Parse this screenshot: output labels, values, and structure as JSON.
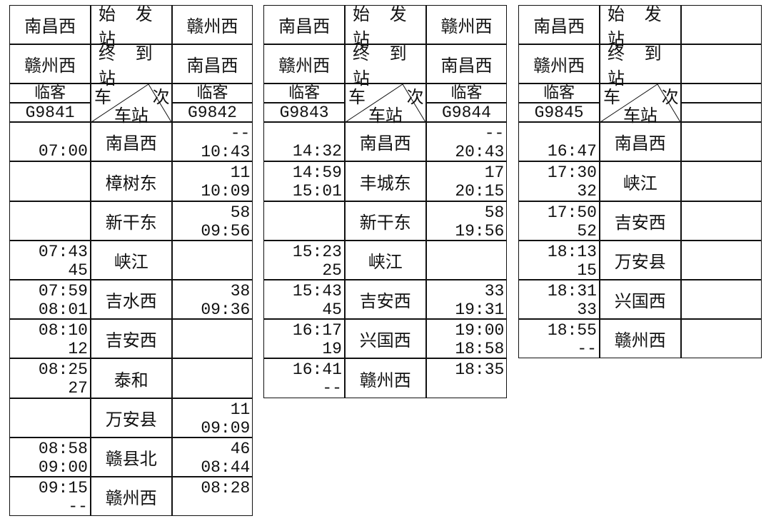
{
  "header_labels": {
    "origin": "始 发 站",
    "terminal": "终 到 站",
    "train": "车",
    "number": "次",
    "station": "车站"
  },
  "tables": [
    {
      "left": {
        "origin": "南昌西",
        "terminal": "赣州西",
        "type": "临客",
        "train_no": "G9841"
      },
      "right": {
        "origin": "赣州西",
        "terminal": "南昌西",
        "type": "临客",
        "train_no": "G9842"
      },
      "rows": [
        {
          "station": "南昌西",
          "left": [
            "",
            "07:00"
          ],
          "right": [
            "--",
            "10:43"
          ]
        },
        {
          "station": "樟树东",
          "left": [
            "",
            ""
          ],
          "right": [
            "11",
            "10:09"
          ]
        },
        {
          "station": "新干东",
          "left": [
            "",
            ""
          ],
          "right": [
            "58",
            "09:56"
          ]
        },
        {
          "station": "峡江",
          "left": [
            "07:43",
            "45"
          ],
          "right": [
            "",
            ""
          ]
        },
        {
          "station": "吉水西",
          "left": [
            "07:59",
            "08:01"
          ],
          "right": [
            "38",
            "09:36"
          ]
        },
        {
          "station": "吉安西",
          "left": [
            "08:10",
            "12"
          ],
          "right": [
            "",
            ""
          ]
        },
        {
          "station": "泰和",
          "left": [
            "08:25",
            "27"
          ],
          "right": [
            "",
            ""
          ]
        },
        {
          "station": "万安县",
          "left": [
            "",
            ""
          ],
          "right": [
            "11",
            "09:09"
          ]
        },
        {
          "station": "赣县北",
          "left": [
            "08:58",
            "09:00"
          ],
          "right": [
            "46",
            "08:44"
          ]
        },
        {
          "station": "赣州西",
          "left": [
            "09:15",
            "--"
          ],
          "right": [
            "08:28",
            ""
          ]
        }
      ]
    },
    {
      "left": {
        "origin": "南昌西",
        "terminal": "赣州西",
        "type": "临客",
        "train_no": "G9843"
      },
      "right": {
        "origin": "赣州西",
        "terminal": "南昌西",
        "type": "临客",
        "train_no": "G9844"
      },
      "rows": [
        {
          "station": "南昌西",
          "left": [
            "",
            "14:32"
          ],
          "right": [
            "--",
            "20:43"
          ]
        },
        {
          "station": "丰城东",
          "left": [
            "14:59",
            "15:01"
          ],
          "right": [
            "17",
            "20:15"
          ]
        },
        {
          "station": "新干东",
          "left": [
            "",
            ""
          ],
          "right": [
            "58",
            "19:56"
          ]
        },
        {
          "station": "峡江",
          "left": [
            "15:23",
            "25"
          ],
          "right": [
            "",
            ""
          ]
        },
        {
          "station": "吉安西",
          "left": [
            "15:43",
            "45"
          ],
          "right": [
            "33",
            "19:31"
          ]
        },
        {
          "station": "兴国西",
          "left": [
            "16:17",
            "19"
          ],
          "right": [
            "19:00",
            "18:58"
          ]
        },
        {
          "station": "赣州西",
          "left": [
            "16:41",
            "--"
          ],
          "right": [
            "18:35",
            ""
          ]
        }
      ]
    },
    {
      "left": {
        "origin": "南昌西",
        "terminal": "赣州西",
        "type": "临客",
        "train_no": "G9845"
      },
      "right": {
        "origin": "",
        "terminal": "",
        "type": "",
        "train_no": ""
      },
      "rows": [
        {
          "station": "南昌西",
          "left": [
            "",
            "16:47"
          ],
          "right": [
            "",
            ""
          ]
        },
        {
          "station": "峡江",
          "left": [
            "17:30",
            "32"
          ],
          "right": [
            "",
            ""
          ]
        },
        {
          "station": "吉安西",
          "left": [
            "17:50",
            "52"
          ],
          "right": [
            "",
            ""
          ]
        },
        {
          "station": "万安县",
          "left": [
            "18:13",
            "15"
          ],
          "right": [
            "",
            ""
          ]
        },
        {
          "station": "兴国西",
          "left": [
            "18:31",
            "33"
          ],
          "right": [
            "",
            ""
          ]
        },
        {
          "station": "赣州西",
          "left": [
            "18:55",
            "--"
          ],
          "right": [
            "",
            ""
          ]
        }
      ]
    }
  ]
}
